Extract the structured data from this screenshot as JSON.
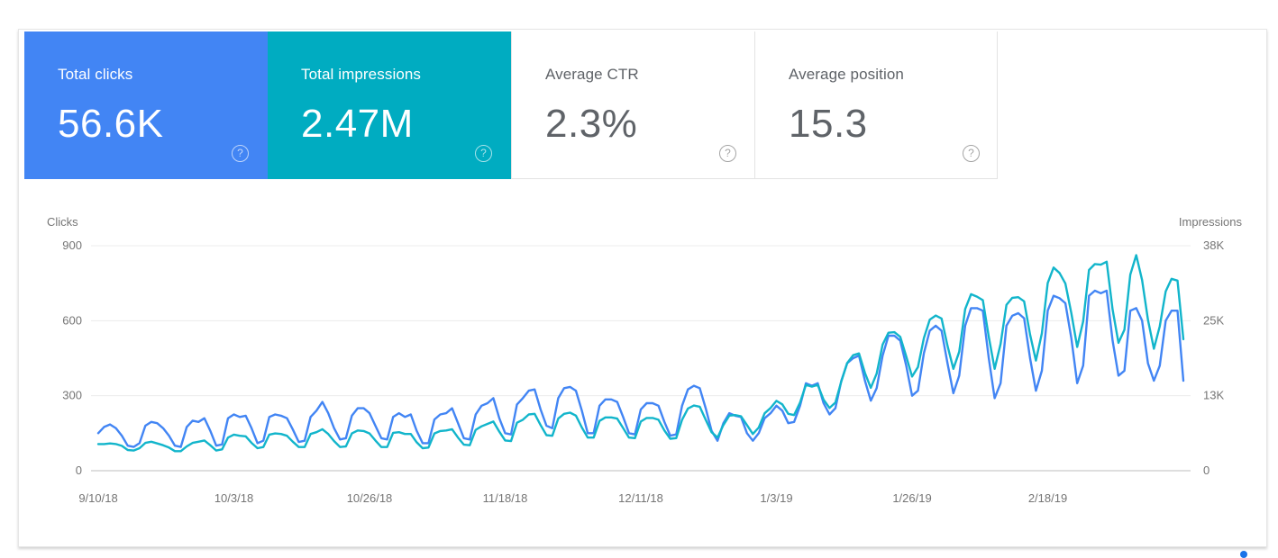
{
  "metrics": [
    {
      "label": "Total clicks",
      "value": "56.6K",
      "color": "#4285f4",
      "active": true
    },
    {
      "label": "Total impressions",
      "value": "2.47M",
      "color": "#00acc1",
      "active": true
    },
    {
      "label": "Average CTR",
      "value": "2.3%",
      "active": false
    },
    {
      "label": "Average position",
      "value": "15.3",
      "active": false
    }
  ],
  "help_glyph": "?",
  "chart_data": {
    "type": "line",
    "left_axis_label": "Clicks",
    "right_axis_label": "Impressions",
    "left_ticks": [
      "900",
      "600",
      "300",
      "0"
    ],
    "right_ticks": [
      "38K",
      "25K",
      "13K",
      "0"
    ],
    "left_ylim": [
      0,
      900
    ],
    "right_ylim": [
      0,
      38000
    ],
    "x_tick_labels": [
      "9/10/18",
      "10/3/18",
      "10/26/18",
      "11/18/18",
      "12/11/18",
      "1/3/19",
      "1/26/19",
      "2/18/19"
    ],
    "x_start_date": "9/10/18",
    "x_tick_every_days": 23,
    "grid": true,
    "series": [
      {
        "name": "Clicks",
        "axis": "left",
        "color": "#4285f4",
        "values": [
          150,
          175,
          185,
          170,
          140,
          100,
          95,
          110,
          180,
          195,
          190,
          170,
          140,
          100,
          95,
          175,
          200,
          195,
          210,
          160,
          100,
          105,
          210,
          225,
          215,
          220,
          170,
          110,
          120,
          215,
          225,
          220,
          210,
          165,
          115,
          120,
          215,
          240,
          275,
          230,
          170,
          125,
          130,
          220,
          250,
          250,
          230,
          180,
          130,
          125,
          215,
          230,
          215,
          225,
          160,
          110,
          110,
          205,
          225,
          230,
          250,
          190,
          130,
          125,
          225,
          260,
          270,
          290,
          210,
          150,
          145,
          265,
          290,
          320,
          325,
          245,
          180,
          170,
          290,
          330,
          335,
          320,
          240,
          150,
          150,
          260,
          285,
          285,
          275,
          215,
          150,
          145,
          245,
          270,
          270,
          260,
          195,
          140,
          145,
          260,
          325,
          340,
          330,
          250,
          160,
          120,
          190,
          230,
          220,
          215,
          150,
          120,
          150,
          210,
          230,
          260,
          240,
          190,
          195,
          260,
          350,
          340,
          350,
          270,
          225,
          250,
          360,
          430,
          450,
          460,
          360,
          280,
          330,
          460,
          540,
          540,
          520,
          420,
          300,
          320,
          470,
          560,
          580,
          560,
          430,
          310,
          380,
          580,
          650,
          650,
          640,
          450,
          290,
          350,
          580,
          620,
          630,
          610,
          450,
          320,
          400,
          640,
          700,
          690,
          670,
          530,
          350,
          420,
          700,
          720,
          710,
          720,
          520,
          380,
          400,
          640,
          650,
          600,
          430,
          360,
          420,
          600,
          640,
          640,
          360
        ]
      },
      {
        "name": "Impressions",
        "axis": "right",
        "color": "#12b5cb",
        "values": [
          4500,
          4500,
          4600,
          4500,
          4200,
          3500,
          3400,
          3800,
          4700,
          4900,
          4600,
          4300,
          3900,
          3300,
          3300,
          4100,
          4700,
          4900,
          5100,
          4300,
          3400,
          3600,
          5600,
          6100,
          5900,
          5800,
          4700,
          3800,
          4000,
          6100,
          6300,
          6200,
          5900,
          4900,
          4000,
          4000,
          6200,
          6500,
          7000,
          6200,
          5000,
          4000,
          4100,
          6300,
          6800,
          6700,
          6300,
          5100,
          4000,
          4000,
          6400,
          6500,
          6200,
          6200,
          4800,
          3800,
          3900,
          6300,
          6700,
          6800,
          7000,
          5600,
          4400,
          4300,
          6900,
          7500,
          7900,
          8300,
          6600,
          5100,
          5000,
          8100,
          8600,
          9500,
          9600,
          7700,
          6000,
          5900,
          8800,
          9600,
          9800,
          9300,
          7300,
          5600,
          5600,
          8400,
          9000,
          9000,
          8800,
          7200,
          5600,
          5500,
          8300,
          8900,
          8900,
          8600,
          6800,
          5400,
          5500,
          8600,
          10500,
          11000,
          10800,
          8600,
          6500,
          5600,
          7700,
          9300,
          9400,
          9200,
          7700,
          6200,
          7300,
          9700,
          10600,
          11800,
          11200,
          9600,
          9400,
          11500,
          14500,
          14200,
          14500,
          12000,
          10600,
          11500,
          15100,
          18200,
          19500,
          19800,
          16500,
          14000,
          16400,
          21300,
          23300,
          23400,
          22600,
          19300,
          15900,
          17500,
          22400,
          25500,
          26200,
          25700,
          21100,
          17200,
          20100,
          27300,
          29800,
          29400,
          28800,
          22600,
          17200,
          21400,
          28000,
          29200,
          29300,
          28600,
          23000,
          18600,
          23200,
          31700,
          34300,
          33400,
          31600,
          26600,
          20900,
          25200,
          33900,
          34900,
          34800,
          35300,
          27200,
          21600,
          23800,
          33100,
          36400,
          32200,
          25500,
          20600,
          24400,
          30300,
          32400,
          32100,
          22200
        ]
      }
    ]
  }
}
